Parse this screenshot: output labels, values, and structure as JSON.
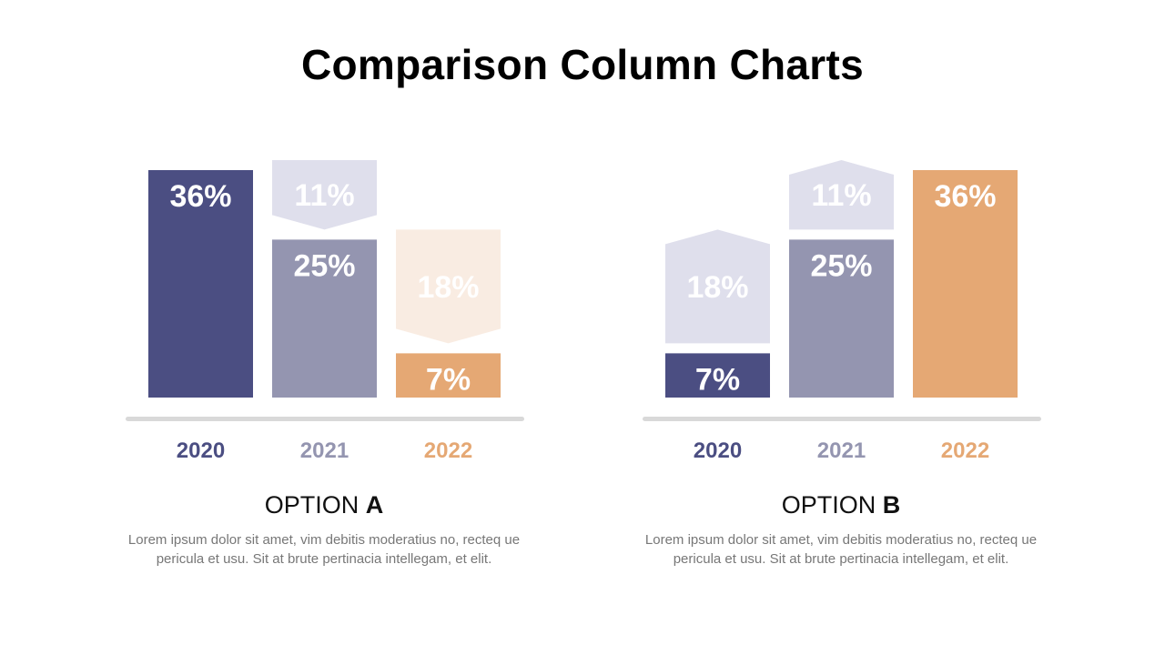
{
  "title": "Comparison Column Charts",
  "colors": {
    "y2020": "#4b4e82",
    "y2021": "#9495b0",
    "y2022": "#e5a874",
    "ghost_light": "#dfdfec",
    "ghost_peach": "#f9ece2",
    "baseline": "#d9d9d9"
  },
  "chart_data": [
    {
      "type": "bar",
      "title": "OPTION A",
      "categories": [
        "2020",
        "2021",
        "2022"
      ],
      "series": [
        {
          "values": [
            36,
            25,
            7
          ]
        },
        {
          "values": [
            0,
            11,
            18
          ]
        }
      ],
      "labels": [
        "36%",
        "25%",
        "7%",
        "11%",
        "18%"
      ],
      "ylim": [
        0,
        36
      ],
      "grid": false
    },
    {
      "type": "bar",
      "title": "OPTION B",
      "categories": [
        "2020",
        "2021",
        "2022"
      ],
      "series": [
        {
          "values": [
            7,
            25,
            36
          ]
        },
        {
          "values": [
            18,
            11,
            0
          ]
        }
      ],
      "labels": [
        "7%",
        "25%",
        "36%",
        "18%",
        "11%"
      ],
      "ylim": [
        0,
        36
      ],
      "grid": false
    }
  ],
  "options": [
    {
      "prefix": "OPTION ",
      "letter": "A",
      "description": "Lorem ipsum dolor sit amet, vim debitis moderatius no, recteq ue pericula et usu. Sit at brute pertinacia intellegam, et elit."
    },
    {
      "prefix": "OPTION ",
      "letter": "B",
      "description": "Lorem ipsum dolor sit amet, vim debitis moderatius no, recteq ue pericula et usu. Sit at brute pertinacia intellegam, et elit."
    }
  ]
}
